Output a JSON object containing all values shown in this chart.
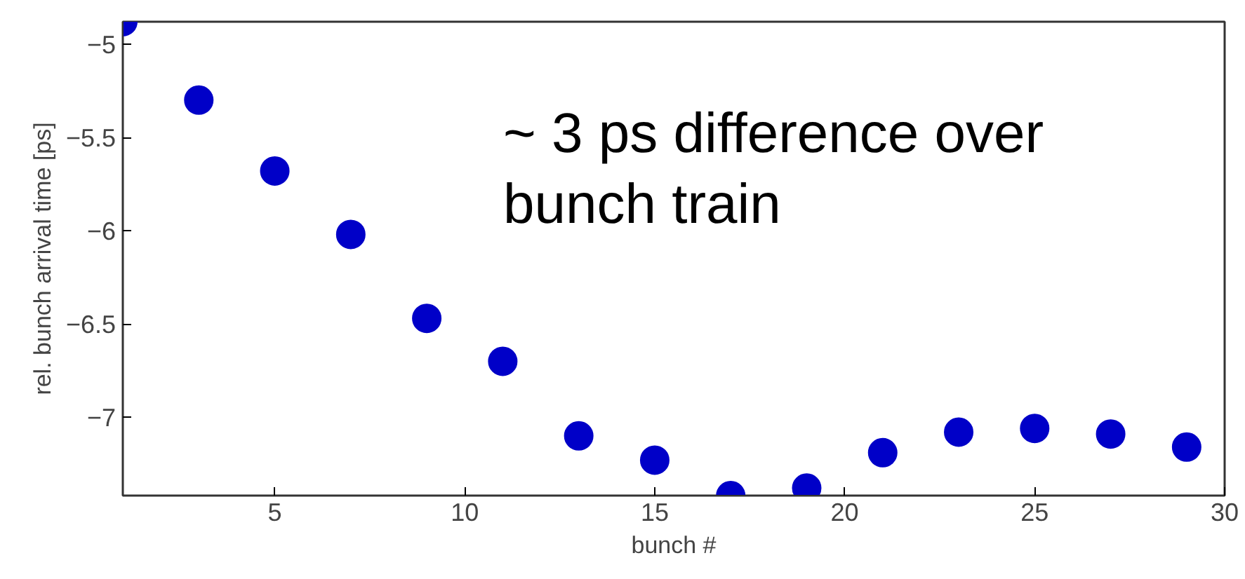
{
  "chart_data": {
    "type": "scatter",
    "xlabel": "bunch #",
    "ylabel": "rel. bunch arrival time [ps]",
    "annotations": [
      "~ 3 ps difference over\nbunch train"
    ],
    "x": [
      1,
      3,
      5,
      7,
      9,
      11,
      13,
      15,
      17,
      19,
      21,
      23,
      25,
      27,
      29
    ],
    "series": [
      {
        "color": "#0000c8",
        "values": [
          -4.88,
          -5.3,
          -5.68,
          -6.02,
          -6.47,
          -6.7,
          -7.1,
          -7.23,
          -7.42,
          -7.38,
          -7.19,
          -7.08,
          -7.06,
          -7.09,
          -7.16
        ]
      }
    ],
    "marker": "circle",
    "xlim": [
      1,
      30
    ],
    "ylim": [
      -7.42,
      -4.88
    ],
    "xticks": [
      5,
      10,
      15,
      20,
      25,
      30
    ],
    "yticks": [
      -7,
      -6.5,
      -6,
      -5.5,
      -5
    ],
    "grid": false
  }
}
